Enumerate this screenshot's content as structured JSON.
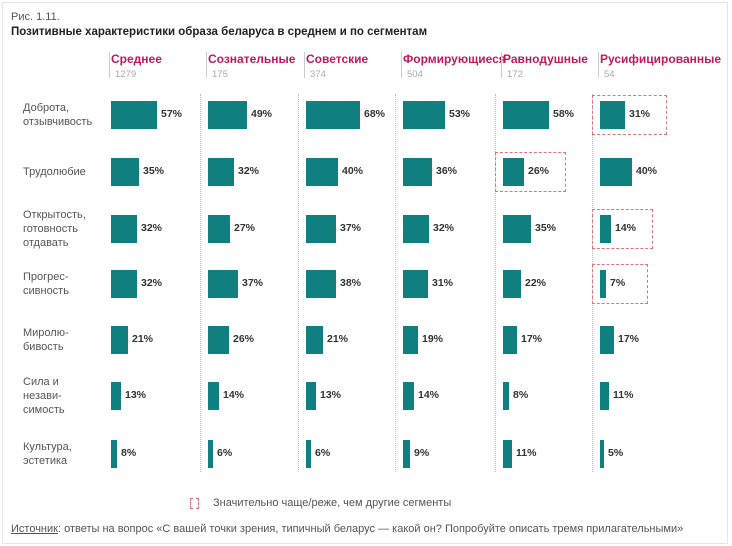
{
  "figure_label": "Рис. 1.11.",
  "title": "Позитивные характеристики образа беларуса в среднем и по сегментам",
  "legend_text": "Значительно чаще/реже, чем другие сегменты",
  "source_label": "Источник",
  "source_text": ": ответы на вопрос «С вашей точки зрения, типичный беларус — какой он? Попробуйте описать тремя прилагательными»",
  "colors": {
    "bar": "#0f7f7f",
    "header": "#c2185b",
    "highlight": "#e0717d"
  },
  "chart_data": {
    "type": "bar",
    "orientation": "horizontal",
    "xlim": [
      0,
      100
    ],
    "groups": [
      {
        "name": "Среднее",
        "n": "1279"
      },
      {
        "name": "Сознательные",
        "n": "175"
      },
      {
        "name": "Советские",
        "n": "374"
      },
      {
        "name": "Формирующиеся",
        "n": "504"
      },
      {
        "name": "Равнодушные",
        "n": "172"
      },
      {
        "name": "Русифицированные",
        "n": "54"
      }
    ],
    "categories": [
      "Доброта,\nотзывчивость",
      "Трудолюбие",
      "Открытость,\nготовность\nотдавать",
      "Прогрес-\nсивность",
      "Миролю-\nбивость",
      "Сила и\nнезави-\nсимость",
      "Культура,\nэстетика"
    ],
    "values": [
      [
        57,
        49,
        68,
        53,
        58,
        31
      ],
      [
        35,
        32,
        40,
        36,
        26,
        40
      ],
      [
        32,
        27,
        37,
        32,
        35,
        14
      ],
      [
        32,
        37,
        38,
        31,
        22,
        7
      ],
      [
        21,
        26,
        21,
        19,
        17,
        17
      ],
      [
        13,
        14,
        13,
        14,
        8,
        11
      ],
      [
        8,
        6,
        6,
        9,
        11,
        5
      ]
    ],
    "value_suffix": "%",
    "highlights": [
      {
        "category": 0,
        "group": 5
      },
      {
        "category": 1,
        "group": 4
      },
      {
        "category": 2,
        "group": 5
      },
      {
        "category": 3,
        "group": 5
      }
    ]
  }
}
